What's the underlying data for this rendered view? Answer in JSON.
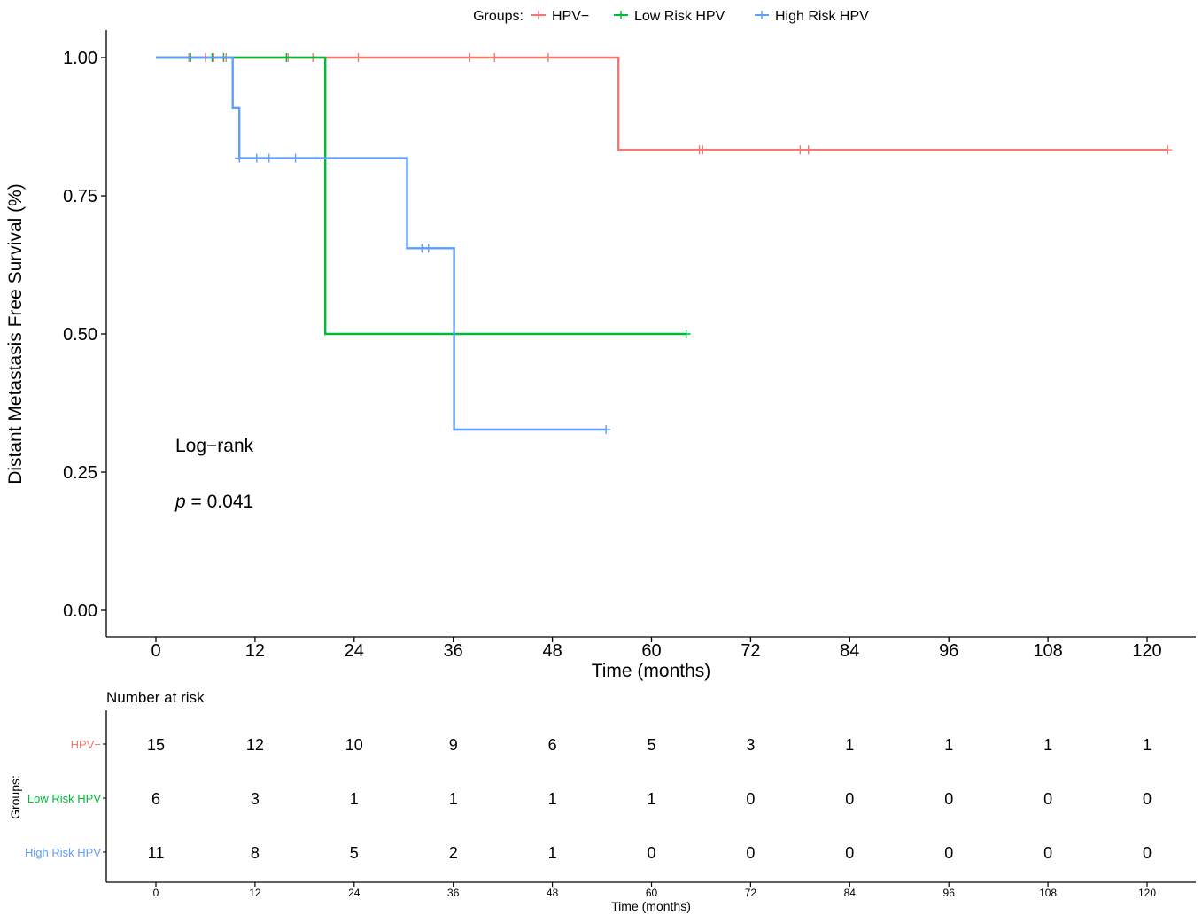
{
  "chart_data": {
    "type": "line",
    "subtype": "kaplan-meier step survival curve",
    "ylabel": "Distant Metastasis Free Survival (%)",
    "xlabel": "Time (months)",
    "xlim": [
      0,
      122
    ],
    "ylim": [
      0,
      1
    ],
    "x_ticks": [
      0,
      12,
      24,
      36,
      48,
      60,
      72,
      84,
      96,
      108,
      120
    ],
    "y_ticks": [
      0.0,
      0.25,
      0.5,
      0.75,
      1.0
    ],
    "y_tick_labels": [
      "0.00",
      "0.25",
      "0.50",
      "0.75",
      "1.00"
    ],
    "grid": false,
    "legend": {
      "title": "Groups:",
      "position": "top",
      "items": [
        "HPV−",
        "Low Risk HPV",
        "High Risk HPV"
      ]
    },
    "annotation": {
      "line1": "Log−rank",
      "p_symbol": "p",
      "p_text": " = 0.041"
    },
    "series": [
      {
        "name": "HPV−",
        "color": "#F8766D",
        "steps": [
          [
            0,
            1.0
          ],
          [
            56,
            1.0
          ],
          [
            56,
            0.833
          ],
          [
            122.5,
            0.833
          ]
        ],
        "censor_times": [
          4,
          6,
          7,
          8.5,
          16,
          19,
          24.5,
          38,
          41,
          47.5,
          65.8,
          66.2,
          78,
          79,
          122.5
        ]
      },
      {
        "name": "Low Risk HPV",
        "color": "#00BA38",
        "steps": [
          [
            0,
            1.0
          ],
          [
            20.5,
            1.0
          ],
          [
            20.5,
            0.5
          ],
          [
            64.2,
            0.5
          ]
        ],
        "censor_times": [
          4.2,
          6.8,
          8.2,
          15.8,
          64.2
        ]
      },
      {
        "name": "High Risk HPV",
        "color": "#619CFF",
        "steps": [
          [
            0,
            1.0
          ],
          [
            9.3,
            1.0
          ],
          [
            9.3,
            0.909
          ],
          [
            10.1,
            0.909
          ],
          [
            10.1,
            0.818
          ],
          [
            30.4,
            0.818
          ],
          [
            30.4,
            0.655
          ],
          [
            36.1,
            0.655
          ],
          [
            36.1,
            0.327
          ],
          [
            54.5,
            0.327
          ]
        ],
        "censor_times": [
          10.1,
          12.2,
          13.7,
          16.9,
          32.2,
          33.0,
          54.5
        ]
      }
    ]
  },
  "risk_table": {
    "title": "Number at risk",
    "y_axis_label": "Groups:",
    "xlabel": "Time (months)",
    "times": [
      0,
      12,
      24,
      36,
      48,
      60,
      72,
      84,
      96,
      108,
      120
    ],
    "rows": [
      {
        "group": "HPV−",
        "color": "#F8766D",
        "values": [
          15,
          12,
          10,
          9,
          6,
          5,
          3,
          1,
          1,
          1,
          1
        ]
      },
      {
        "group": "Low Risk HPV",
        "color": "#00BA38",
        "values": [
          6,
          3,
          1,
          1,
          1,
          1,
          0,
          0,
          0,
          0,
          0
        ]
      },
      {
        "group": "High Risk HPV",
        "color": "#619CFF",
        "values": [
          11,
          8,
          5,
          2,
          1,
          0,
          0,
          0,
          0,
          0,
          0
        ]
      }
    ]
  }
}
